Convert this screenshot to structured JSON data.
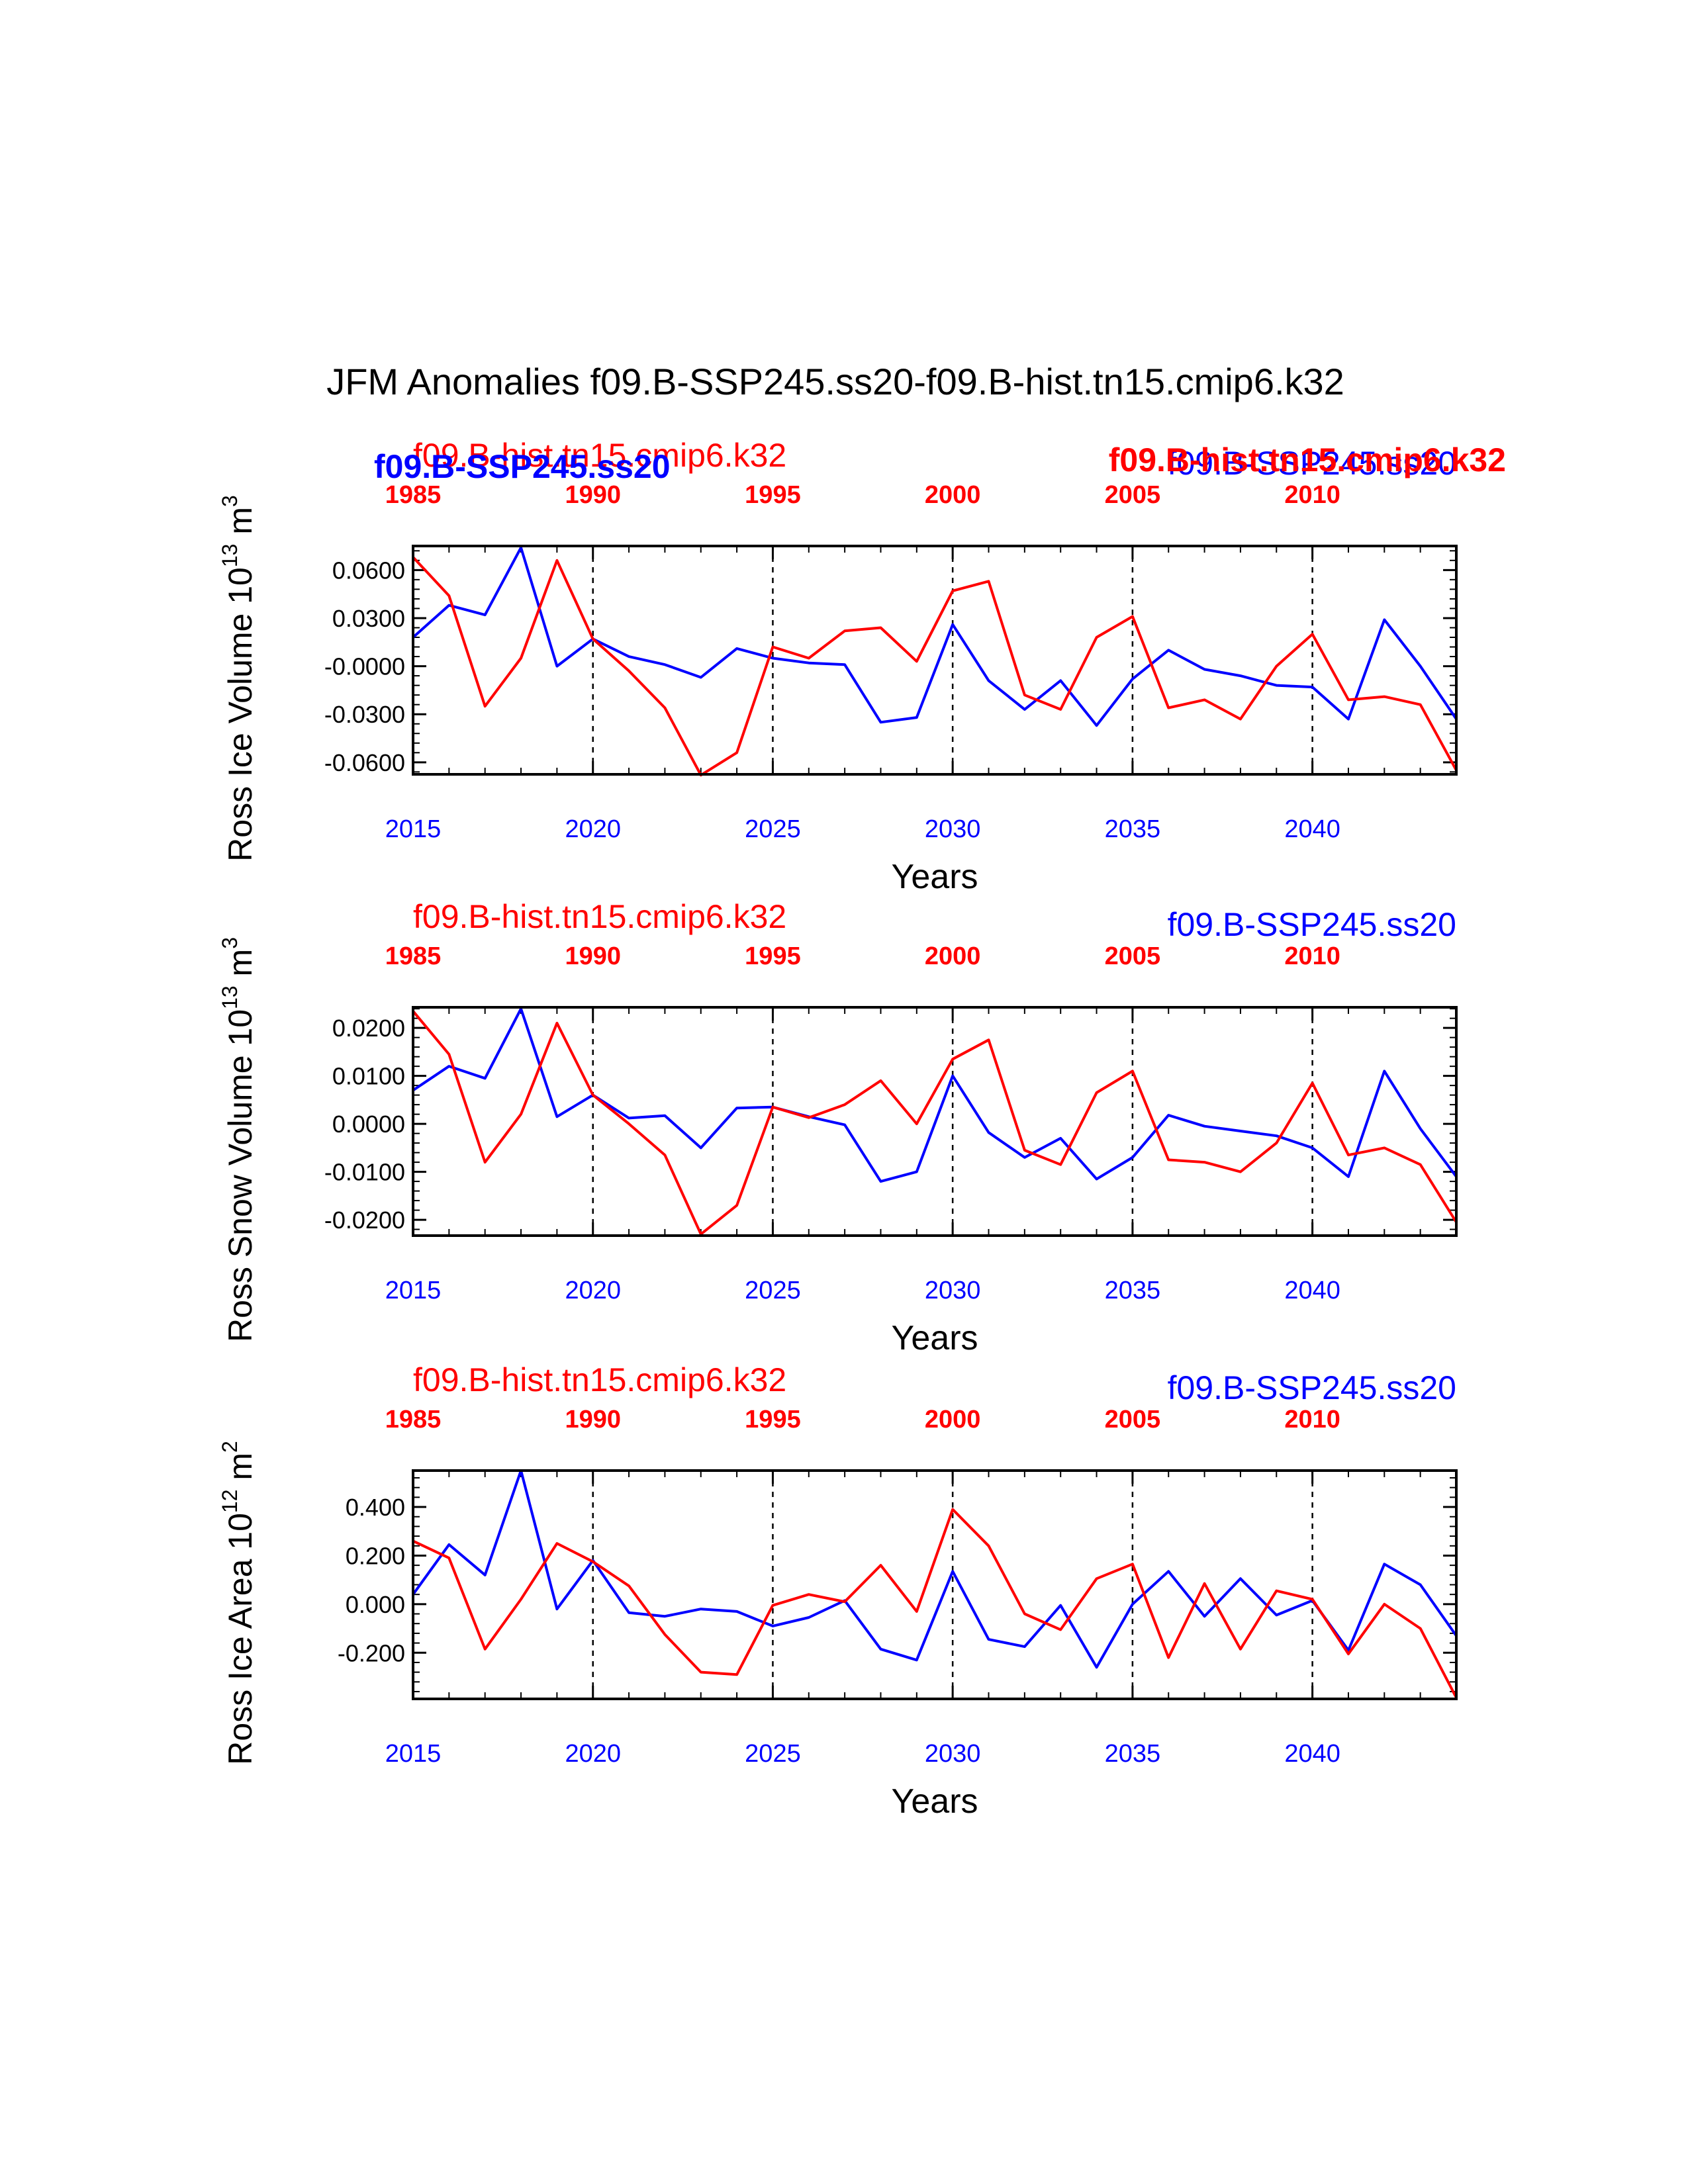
{
  "title": "JFM Anomalies f09.B-SSP245.ss20-f09.B-hist.tn15.cmip6.k32",
  "colors": {
    "ssp": "#0000ff",
    "hist": "#ff0000",
    "axis": "#000000"
  },
  "overlay_labels": {
    "ssp_bold": "f09.B-SSP245.ss20",
    "hist_bold": "f09.B-hist.tn15.cmip6.k32"
  },
  "chart_data": [
    {
      "type": "line",
      "ylabel_main": "Ross Ice Volume 10",
      "ylabel_exp": "13",
      "ylabel_unit": " m",
      "ylabel_unit_exp": "3",
      "xlabel": "Years",
      "hist_label": "f09.B-hist.tn15.cmip6.k32",
      "ssp_label": "f09.B-SSP245.ss20",
      "ylim": [
        -0.0675,
        0.075
      ],
      "xlim": [
        2015,
        2044
      ],
      "top_xlim": [
        1985,
        2014
      ],
      "yticks": [
        0.06,
        0.03,
        0.0,
        -0.03,
        -0.06
      ],
      "ytick_labels": [
        "0.0600",
        "0.0300",
        "-0.0000",
        "-0.0300",
        "-0.0600"
      ],
      "xticks": [
        2015,
        2020,
        2025,
        2030,
        2035,
        2040
      ],
      "xtick_labels": [
        "2015",
        "2020",
        "2025",
        "2030",
        "2035",
        "2040"
      ],
      "top_xticks": [
        1985,
        1990,
        1995,
        2000,
        2005,
        2010
      ],
      "top_xtick_labels": [
        "1985",
        "1990",
        "1995",
        "2000",
        "2005",
        "2010"
      ],
      "vlines": [
        2020,
        2025,
        2030,
        2035,
        2040
      ],
      "x": [
        2015,
        2016,
        2017,
        2018,
        2019,
        2020,
        2021,
        2022,
        2023,
        2024,
        2025,
        2026,
        2027,
        2028,
        2029,
        2030,
        2031,
        2032,
        2033,
        2034,
        2035,
        2036,
        2037,
        2038,
        2039,
        2040,
        2041,
        2042,
        2043,
        2044
      ],
      "series": [
        {
          "key": "ssp",
          "values": [
            0.018,
            0.038,
            0.032,
            0.074,
            0.0,
            0.017,
            0.006,
            0.001,
            -0.007,
            0.011,
            0.005,
            0.002,
            0.001,
            -0.035,
            -0.032,
            0.026,
            -0.009,
            -0.027,
            -0.009,
            -0.037,
            -0.008,
            0.01,
            -0.002,
            -0.006,
            -0.012,
            -0.013,
            -0.033,
            0.029,
            0.0,
            -0.033
          ]
        },
        {
          "key": "hist",
          "values": [
            0.068,
            0.044,
            -0.025,
            0.005,
            0.066,
            0.017,
            -0.003,
            -0.026,
            -0.068,
            -0.054,
            0.012,
            0.005,
            0.022,
            0.024,
            0.003,
            0.047,
            0.053,
            -0.018,
            -0.027,
            0.018,
            0.031,
            -0.026,
            -0.021,
            -0.033,
            0.0,
            0.02,
            -0.021,
            -0.019,
            -0.024,
            -0.065
          ]
        }
      ]
    },
    {
      "type": "line",
      "ylabel_main": "Ross Snow Volume 10",
      "ylabel_exp": "13",
      "ylabel_unit": " m",
      "ylabel_unit_exp": "3",
      "xlabel": "Years",
      "hist_label": "f09.B-hist.tn15.cmip6.k32",
      "ssp_label": "f09.B-SSP245.ss20",
      "ylim": [
        -0.0233,
        0.0243
      ],
      "xlim": [
        2015,
        2044
      ],
      "top_xlim": [
        1985,
        2014
      ],
      "yticks": [
        0.02,
        0.01,
        0.0,
        -0.01,
        -0.02
      ],
      "ytick_labels": [
        "0.0200",
        "0.0100",
        "0.0000",
        "-0.0100",
        "-0.0200"
      ],
      "xticks": [
        2015,
        2020,
        2025,
        2030,
        2035,
        2040
      ],
      "xtick_labels": [
        "2015",
        "2020",
        "2025",
        "2030",
        "2035",
        "2040"
      ],
      "top_xticks": [
        1985,
        1990,
        1995,
        2000,
        2005,
        2010
      ],
      "top_xtick_labels": [
        "1985",
        "1990",
        "1995",
        "2000",
        "2005",
        "2010"
      ],
      "vlines": [
        2020,
        2025,
        2030,
        2035,
        2040
      ],
      "x": [
        2015,
        2016,
        2017,
        2018,
        2019,
        2020,
        2021,
        2022,
        2023,
        2024,
        2025,
        2026,
        2027,
        2028,
        2029,
        2030,
        2031,
        2032,
        2033,
        2034,
        2035,
        2036,
        2037,
        2038,
        2039,
        2040,
        2041,
        2042,
        2043,
        2044
      ],
      "series": [
        {
          "key": "ssp",
          "values": [
            0.007,
            0.012,
            0.0095,
            0.024,
            0.0015,
            0.006,
            0.0012,
            0.0017,
            -0.005,
            0.0033,
            0.0035,
            0.0015,
            -0.0002,
            -0.012,
            -0.01,
            0.01,
            -0.0018,
            -0.007,
            -0.003,
            -0.0115,
            -0.007,
            0.0018,
            -0.0005,
            -0.0015,
            -0.0025,
            -0.005,
            -0.011,
            0.011,
            -0.001,
            -0.011
          ]
        },
        {
          "key": "hist",
          "values": [
            0.0235,
            0.0145,
            -0.008,
            0.002,
            0.021,
            0.006,
            0.0,
            -0.0065,
            -0.023,
            -0.017,
            0.0035,
            0.0013,
            0.004,
            0.009,
            0.0,
            0.0135,
            0.0175,
            -0.0055,
            -0.0085,
            0.0065,
            0.011,
            -0.0075,
            -0.008,
            -0.01,
            -0.004,
            0.0085,
            -0.0065,
            -0.005,
            -0.0085,
            -0.0205
          ]
        }
      ]
    },
    {
      "type": "line",
      "ylabel_main": "Ross Ice Area 10",
      "ylabel_exp": "12",
      "ylabel_unit": " m",
      "ylabel_unit_exp": "2",
      "xlabel": "Years",
      "hist_label": "f09.B-hist.tn15.cmip6.k32",
      "ssp_label": "f09.B-SSP245.ss20",
      "ylim": [
        -0.39,
        0.55
      ],
      "xlim": [
        2015,
        2044
      ],
      "top_xlim": [
        1985,
        2014
      ],
      "yticks": [
        0.4,
        0.2,
        0.0,
        -0.2
      ],
      "ytick_labels": [
        "0.400",
        "0.200",
        "0.000",
        "-0.200"
      ],
      "xticks": [
        2015,
        2020,
        2025,
        2030,
        2035,
        2040
      ],
      "xtick_labels": [
        "2015",
        "2020",
        "2025",
        "2030",
        "2035",
        "2040"
      ],
      "top_xticks": [
        1985,
        1990,
        1995,
        2000,
        2005,
        2010
      ],
      "top_xtick_labels": [
        "1985",
        "1990",
        "1995",
        "2000",
        "2005",
        "2010"
      ],
      "vlines": [
        2020,
        2025,
        2030,
        2035,
        2040
      ],
      "x": [
        2015,
        2016,
        2017,
        2018,
        2019,
        2020,
        2021,
        2022,
        2023,
        2024,
        2025,
        2026,
        2027,
        2028,
        2029,
        2030,
        2031,
        2032,
        2033,
        2034,
        2035,
        2036,
        2037,
        2038,
        2039,
        2040,
        2041,
        2042,
        2043,
        2044
      ],
      "series": [
        {
          "key": "ssp",
          "values": [
            0.04,
            0.245,
            0.12,
            0.55,
            -0.02,
            0.18,
            -0.035,
            -0.05,
            -0.02,
            -0.03,
            -0.09,
            -0.055,
            0.015,
            -0.185,
            -0.23,
            0.135,
            -0.145,
            -0.175,
            -0.005,
            -0.26,
            0.0,
            0.135,
            -0.05,
            0.105,
            -0.045,
            0.015,
            -0.19,
            0.165,
            0.08,
            -0.13
          ]
        },
        {
          "key": "hist",
          "values": [
            0.26,
            0.19,
            -0.185,
            0.02,
            0.25,
            0.175,
            0.075,
            -0.125,
            -0.28,
            -0.29,
            -0.005,
            0.04,
            0.01,
            0.16,
            -0.03,
            0.39,
            0.24,
            -0.04,
            -0.105,
            0.105,
            0.165,
            -0.22,
            0.085,
            -0.185,
            0.055,
            0.02,
            -0.205,
            0.0,
            -0.1,
            -0.385
          ]
        }
      ]
    }
  ]
}
